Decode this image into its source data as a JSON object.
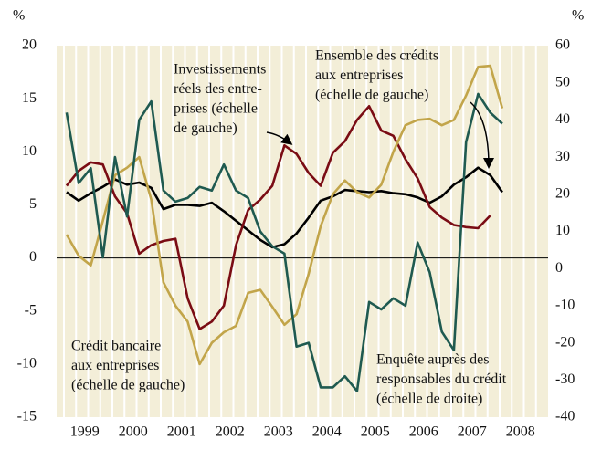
{
  "chart_data": {
    "type": "line",
    "y_unit": "%",
    "y2_unit": "%",
    "x": [
      1999.125,
      1999.375,
      1999.625,
      1999.875,
      2000.125,
      2000.375,
      2000.625,
      2000.875,
      2001.125,
      2001.375,
      2001.625,
      2001.875,
      2002.125,
      2002.375,
      2002.625,
      2002.875,
      2003.125,
      2003.375,
      2003.625,
      2003.875,
      2004.125,
      2004.375,
      2004.625,
      2004.875,
      2005.125,
      2005.375,
      2005.625,
      2005.875,
      2006.125,
      2006.375,
      2006.625,
      2006.875,
      2007.125,
      2007.375,
      2007.625,
      2007.875,
      2008.125
    ],
    "xlim": [
      1998.92,
      2009.07
    ],
    "xticks": [
      {
        "value": 1999.5,
        "label": "1999"
      },
      {
        "value": 2000.5,
        "label": "2000"
      },
      {
        "value": 2001.5,
        "label": "2001"
      },
      {
        "value": 2002.5,
        "label": "2002"
      },
      {
        "value": 2003.5,
        "label": "2003"
      },
      {
        "value": 2004.5,
        "label": "2004"
      },
      {
        "value": 2005.5,
        "label": "2005"
      },
      {
        "value": 2006.5,
        "label": "2006"
      },
      {
        "value": 2007.5,
        "label": "2007"
      },
      {
        "value": 2008.5,
        "label": "2008"
      }
    ],
    "ylim": [
      -15,
      20
    ],
    "yticks": [
      -15,
      -10,
      -5,
      0,
      5,
      10,
      15,
      20
    ],
    "y2lim": [
      -40,
      60
    ],
    "y2ticks": [
      -40,
      -30,
      -20,
      -10,
      0,
      10,
      20,
      30,
      40,
      50,
      60
    ],
    "series": [
      {
        "name": [
          "Ensemble des crédits",
          "aux entreprises",
          "(échelle de gauche)"
        ],
        "color": "#000000",
        "values": [
          6.2,
          5.4,
          6.1,
          6.7,
          7.4,
          6.9,
          7.1,
          6.6,
          4.6,
          5.0,
          5.0,
          4.9,
          5.2,
          4.4,
          3.5,
          2.6,
          1.7,
          1.0,
          1.3,
          2.3,
          3.8,
          5.4,
          5.8,
          6.4,
          6.3,
          6.2,
          6.3,
          6.1,
          6.0,
          5.7,
          5.2,
          5.8,
          6.9,
          7.6,
          8.5,
          7.8,
          6.2
        ]
      },
      {
        "name": [
          "Investissements",
          "réels des entre-",
          "prises (échelle",
          "de gauche)"
        ],
        "color": "#7a0c14",
        "values": [
          6.8,
          8.2,
          9.0,
          8.8,
          5.8,
          4.2,
          0.4,
          1.2,
          1.6,
          1.8,
          -3.8,
          -6.7,
          -6.0,
          -4.5,
          1.2,
          4.5,
          5.5,
          6.8,
          10.6,
          9.8,
          8.0,
          6.8,
          9.9,
          11.0,
          13.0,
          14.3,
          12.0,
          11.5,
          9.3,
          7.5,
          4.8,
          3.8,
          3.1,
          2.9,
          2.8,
          4.0,
          null
        ]
      },
      {
        "name": [
          "Crédit bancaire",
          "aux entreprises",
          "(échelle de gauche)"
        ],
        "color": "#c2a54a",
        "values": [
          2.2,
          0.2,
          -0.7,
          3.5,
          7.8,
          8.5,
          9.5,
          5.5,
          -2.3,
          -4.5,
          -6.0,
          -10.0,
          -8.0,
          -7.0,
          -6.4,
          -3.3,
          -3.0,
          -4.6,
          -6.3,
          -5.3,
          -1.5,
          3.0,
          6.0,
          7.3,
          6.2,
          5.7,
          6.9,
          10.0,
          12.5,
          13.0,
          13.1,
          12.5,
          13.0,
          15.3,
          18.0,
          18.1,
          14.1
        ]
      },
      {
        "name": [
          "Enquête auprès des",
          "responsables du crédit",
          "(échelle de droite)"
        ],
        "color": "#1f5a50",
        "axis": "y2",
        "values": [
          42,
          23,
          27,
          3,
          30,
          14,
          40,
          45,
          21,
          18,
          19,
          22,
          21,
          28,
          21,
          19,
          10,
          6,
          4,
          -21,
          -20,
          -32,
          -32,
          -29,
          -33,
          -9,
          -11,
          -8,
          -10,
          7,
          -1,
          -17,
          -22,
          34,
          47,
          42,
          39
        ]
      }
    ]
  }
}
